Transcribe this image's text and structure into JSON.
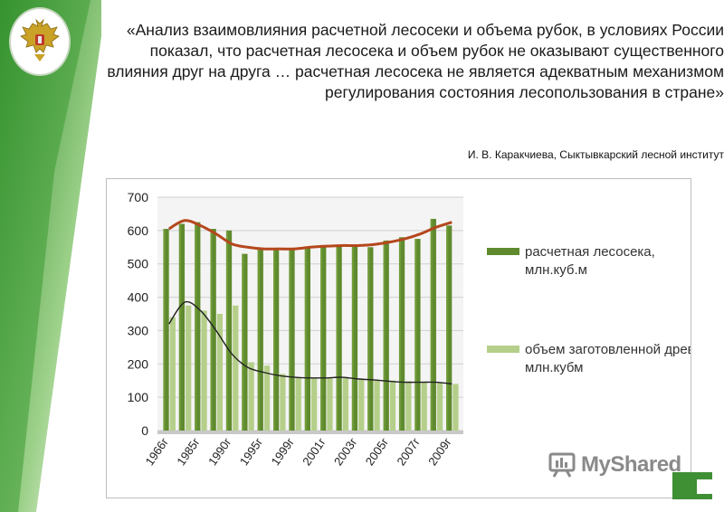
{
  "quote": {
    "text": "«Анализ взаимовлияния расчетной лесосеки и объема рубок, в условиях России показал, что расчетная лесосека и объем рубок не оказывают существенного влияния друг на друга … расчетная лесосека не является адекватным механизмом регулирования состояния лесопользования в стране»"
  },
  "author": {
    "text": "И. В. Каракчиева, Сыктывкарский лесной институт"
  },
  "watermark": {
    "text": "MyShared"
  },
  "colors": {
    "accent_green": "#3f8f35",
    "bar_dark": "#5f8a2e",
    "bar_light": "#b5cf8a",
    "trend_top": "#b5471d",
    "trend_bottom": "#222222"
  },
  "chart_data": {
    "type": "bar",
    "ylim": [
      0,
      700
    ],
    "yticks": [
      "0",
      "100",
      "200",
      "300",
      "400",
      "500",
      "600",
      "700"
    ],
    "categories": [
      "1966г",
      "",
      "1985г",
      "",
      "1990г",
      "",
      "1995г",
      "",
      "1999г",
      "",
      "2001г",
      "",
      "2003г",
      "",
      "2005г",
      "",
      "2007г",
      "",
      "2009г"
    ],
    "series": [
      {
        "name": "расчетная лесосека, млн.куб.м",
        "values": [
          605,
          620,
          625,
          605,
          600,
          530,
          545,
          545,
          545,
          550,
          550,
          555,
          555,
          550,
          570,
          580,
          575,
          635,
          615
        ]
      },
      {
        "name": "объем заготовленной древесины, млн.кубм",
        "values": [
          340,
          375,
          360,
          350,
          375,
          205,
          195,
          170,
          160,
          158,
          160,
          158,
          155,
          152,
          150,
          148,
          145,
          145,
          140
        ]
      }
    ],
    "trend_top": [
      605,
      630,
      615,
      590,
      560,
      550,
      545,
      545,
      545,
      550,
      553,
      555,
      555,
      558,
      565,
      575,
      590,
      610,
      625
    ],
    "trend_bottom": [
      320,
      385,
      360,
      300,
      230,
      190,
      175,
      165,
      160,
      158,
      158,
      160,
      155,
      152,
      148,
      145,
      145,
      145,
      140
    ],
    "legend_position": "right",
    "grid": true
  }
}
